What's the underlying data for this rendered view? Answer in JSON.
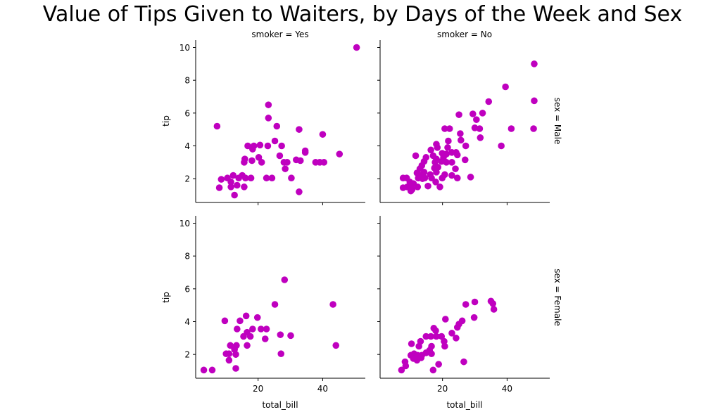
{
  "chart_data": {
    "type": "scatter",
    "title": "Value of Tips Given to Waiters, by Days of the Week and Sex",
    "xlabel": "total_bill",
    "ylabel": "tip",
    "xlim": [
      0.68,
      53.2
    ],
    "ylim": [
      0.55,
      10.45
    ],
    "xticks": [
      20,
      40
    ],
    "yticks": [
      2,
      4,
      6,
      8,
      10
    ],
    "marker_color": "#bf00bf",
    "grid": false,
    "col_titles": [
      "smoker = Yes",
      "smoker = No"
    ],
    "row_titles": [
      "sex = Male",
      "sex = Female"
    ],
    "panels": [
      {
        "row": 0,
        "col": 0,
        "title": "smoker = Yes",
        "row_title": "sex = Male",
        "points": [
          [
            50.5,
            10
          ],
          [
            23.2,
            6.5
          ],
          [
            23.2,
            5.7
          ],
          [
            7.3,
            5.2
          ],
          [
            25.8,
            5.2
          ],
          [
            32.7,
            5.0
          ],
          [
            40,
            4.7
          ],
          [
            25.2,
            4.3
          ],
          [
            16.8,
            4
          ],
          [
            18.7,
            4
          ],
          [
            20.6,
            4.05
          ],
          [
            23,
            4
          ],
          [
            27.3,
            4
          ],
          [
            18.3,
            3.8
          ],
          [
            34.6,
            3.7
          ],
          [
            34.6,
            3.6
          ],
          [
            45.2,
            3.5
          ],
          [
            26.7,
            3.4
          ],
          [
            15.9,
            3.2
          ],
          [
            18.1,
            3.1
          ],
          [
            20.2,
            3.3
          ],
          [
            21.1,
            3.0
          ],
          [
            15.7,
            3.0
          ],
          [
            28,
            3.0
          ],
          [
            29,
            3.0
          ],
          [
            31.8,
            3.15
          ],
          [
            33.1,
            3.1
          ],
          [
            37.8,
            3
          ],
          [
            39.1,
            3
          ],
          [
            40.4,
            3
          ],
          [
            28.4,
            2.6
          ],
          [
            8.6,
            1.96
          ],
          [
            10.5,
            2.04
          ],
          [
            12.3,
            2.2
          ],
          [
            14,
            2.04
          ],
          [
            15.1,
            2.2
          ],
          [
            16.1,
            2.04
          ],
          [
            17.8,
            2.04
          ],
          [
            11.6,
            1.8
          ],
          [
            22.6,
            2.04
          ],
          [
            24.3,
            2.04
          ],
          [
            30.3,
            2.04
          ],
          [
            8,
            1.45
          ],
          [
            11.6,
            1.5
          ],
          [
            13.5,
            1.6
          ],
          [
            15.7,
            1.5
          ],
          [
            12.7,
            1.0
          ],
          [
            32.7,
            1.2
          ]
        ]
      },
      {
        "row": 0,
        "col": 1,
        "title": "smoker = No",
        "row_title": "sex = Male",
        "points": [
          [
            48.4,
            9.0
          ],
          [
            39.5,
            7.6
          ],
          [
            34.3,
            6.7
          ],
          [
            48.4,
            6.75
          ],
          [
            25.1,
            5.9
          ],
          [
            29.4,
            5.95
          ],
          [
            32.4,
            6.0
          ],
          [
            30.5,
            5.6
          ],
          [
            20.7,
            5.05
          ],
          [
            22.2,
            5.05
          ],
          [
            30,
            5.1
          ],
          [
            31.5,
            5.05
          ],
          [
            41.3,
            5.05
          ],
          [
            48.2,
            5.05
          ],
          [
            25.5,
            4.75
          ],
          [
            25.7,
            4.35
          ],
          [
            31.7,
            4.5
          ],
          [
            21.8,
            4.3
          ],
          [
            18.1,
            4.1
          ],
          [
            18.4,
            3.9
          ],
          [
            27.2,
            4.0
          ],
          [
            38.2,
            4.0
          ],
          [
            21.6,
            3.9
          ],
          [
            16.4,
            3.75
          ],
          [
            11.7,
            3.4
          ],
          [
            19.9,
            3.55
          ],
          [
            21.2,
            3.5
          ],
          [
            22.9,
            3.6
          ],
          [
            24.2,
            3.6
          ],
          [
            24.6,
            3.45
          ],
          [
            14.9,
            3.3
          ],
          [
            14.3,
            3.05
          ],
          [
            17.1,
            3.4
          ],
          [
            18.1,
            3.2
          ],
          [
            20.3,
            3.3
          ],
          [
            17.7,
            3.0
          ],
          [
            19.7,
            3.05
          ],
          [
            21.2,
            3.0
          ],
          [
            22.9,
            3.0
          ],
          [
            27,
            3.15
          ],
          [
            13.6,
            2.8
          ],
          [
            17.5,
            2.65
          ],
          [
            18.6,
            2.7
          ],
          [
            13,
            2.6
          ],
          [
            24,
            2.6
          ],
          [
            12.1,
            2.35
          ],
          [
            14.3,
            2.4
          ],
          [
            18.1,
            2.4
          ],
          [
            20.7,
            2.25
          ],
          [
            22.9,
            2.2
          ],
          [
            7.8,
            2.04
          ],
          [
            8.9,
            2.04
          ],
          [
            12.5,
            2.04
          ],
          [
            13.8,
            2.0
          ],
          [
            16.2,
            2.25
          ],
          [
            16.6,
            2.04
          ],
          [
            19.9,
            2.04
          ],
          [
            24.6,
            2.04
          ],
          [
            28.7,
            2.1
          ],
          [
            13.4,
            2.2
          ],
          [
            14.5,
            2.04
          ],
          [
            17.9,
            1.8
          ],
          [
            7.8,
            1.45
          ],
          [
            9.1,
            1.5
          ],
          [
            10.2,
            1.55
          ],
          [
            10.6,
            1.35
          ],
          [
            12.3,
            1.5
          ],
          [
            9.9,
            1.8
          ],
          [
            11,
            1.7
          ],
          [
            15.5,
            1.55
          ],
          [
            19.2,
            1.5
          ],
          [
            10.2,
            1.25
          ]
        ]
      },
      {
        "row": 1,
        "col": 0,
        "title": "smoker = Yes",
        "row_title": "sex = Female",
        "points": [
          [
            28.2,
            6.55
          ],
          [
            25.2,
            5.05
          ],
          [
            43.2,
            5.05
          ],
          [
            9.7,
            4.05
          ],
          [
            14.4,
            4.05
          ],
          [
            16.3,
            4.35
          ],
          [
            19.8,
            4.25
          ],
          [
            13.5,
            3.55
          ],
          [
            16.6,
            3.35
          ],
          [
            18.3,
            3.55
          ],
          [
            20.9,
            3.55
          ],
          [
            22.6,
            3.55
          ],
          [
            15.5,
            3.1
          ],
          [
            17.6,
            3.1
          ],
          [
            22.2,
            2.95
          ],
          [
            26.9,
            3.2
          ],
          [
            30.1,
            3.15
          ],
          [
            11.4,
            2.55
          ],
          [
            13.3,
            2.55
          ],
          [
            16.6,
            2.55
          ],
          [
            44.1,
            2.55
          ],
          [
            12.7,
            2.3
          ],
          [
            10.1,
            2.04
          ],
          [
            11,
            2.04
          ],
          [
            13.1,
            2.0
          ],
          [
            27.1,
            2.04
          ],
          [
            11,
            1.65
          ],
          [
            3.2,
            1.05
          ],
          [
            5.8,
            1.05
          ],
          [
            13.1,
            1.15
          ]
        ]
      },
      {
        "row": 1,
        "col": 1,
        "title": "smoker = No",
        "row_title": "sex = Female",
        "points": [
          [
            35,
            5.25
          ],
          [
            35.6,
            5.1
          ],
          [
            35.9,
            4.75
          ],
          [
            27.2,
            5.05
          ],
          [
            30,
            5.2
          ],
          [
            29.8,
            4.25
          ],
          [
            20.9,
            4.15
          ],
          [
            26.1,
            4.05
          ],
          [
            25.1,
            3.85
          ],
          [
            24.6,
            3.65
          ],
          [
            22.9,
            3.3
          ],
          [
            24.2,
            3.0
          ],
          [
            17.3,
            3.6
          ],
          [
            17.9,
            3.45
          ],
          [
            14.9,
            3.1
          ],
          [
            16.4,
            3.1
          ],
          [
            18.1,
            3.1
          ],
          [
            19.7,
            3.1
          ],
          [
            20.5,
            2.8
          ],
          [
            20.7,
            2.5
          ],
          [
            10.4,
            2.65
          ],
          [
            13.2,
            2.8
          ],
          [
            12.7,
            2.5
          ],
          [
            16.6,
            2.5
          ],
          [
            16,
            2.25
          ],
          [
            14.9,
            2.1
          ],
          [
            16.6,
            2.04
          ],
          [
            10.2,
            1.95
          ],
          [
            11.2,
            2.04
          ],
          [
            12.3,
            1.95
          ],
          [
            13.6,
            1.95
          ],
          [
            11,
            1.75
          ],
          [
            12.1,
            1.65
          ],
          [
            13.4,
            1.8
          ],
          [
            8.4,
            1.55
          ],
          [
            8.6,
            1.3
          ],
          [
            7.3,
            1.05
          ],
          [
            18.8,
            1.4
          ],
          [
            17.1,
            1.05
          ],
          [
            26.6,
            1.55
          ]
        ]
      }
    ]
  }
}
